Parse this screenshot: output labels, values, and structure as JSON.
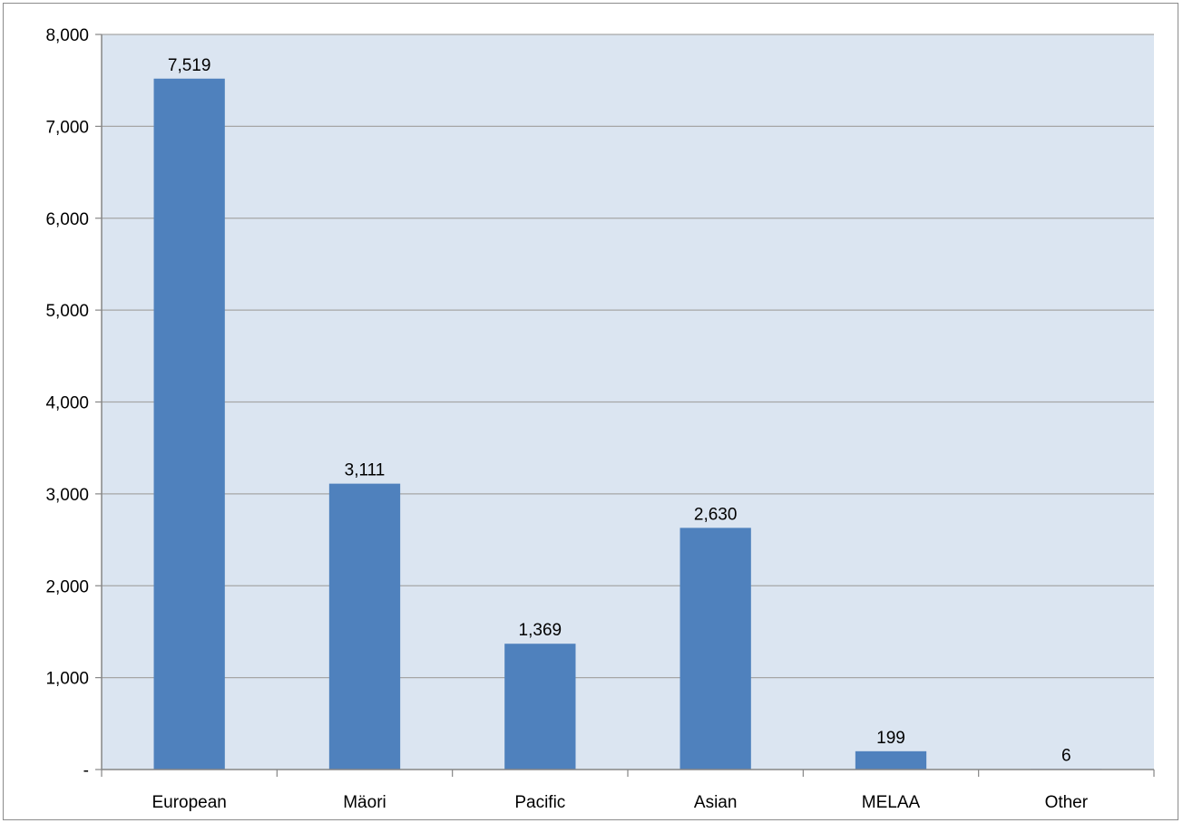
{
  "chart_data": {
    "type": "bar",
    "title": "",
    "xlabel": "",
    "ylabel": "",
    "categories": [
      "European",
      "Mäori",
      "Pacific",
      "Asian",
      "MELAA",
      "Other"
    ],
    "values": [
      7519,
      3111,
      1369,
      2630,
      199,
      6
    ],
    "data_labels": [
      "7,519",
      "3,111",
      "1,369",
      "2,630",
      "199",
      "6"
    ],
    "ylim": [
      0,
      8000
    ],
    "yticks": [
      0,
      1000,
      2000,
      3000,
      4000,
      5000,
      6000,
      7000,
      8000
    ],
    "ytick_labels": [
      "-",
      "1,000",
      "2,000",
      "3,000",
      "4,000",
      "5,000",
      "6,000",
      "7,000",
      "8,000"
    ],
    "grid": true,
    "legend": "none",
    "colors": {
      "bar": "#4f81bd",
      "plot_background": "#dbe5f1",
      "gridline": "#a6a6a6",
      "axis": "#868686"
    }
  }
}
